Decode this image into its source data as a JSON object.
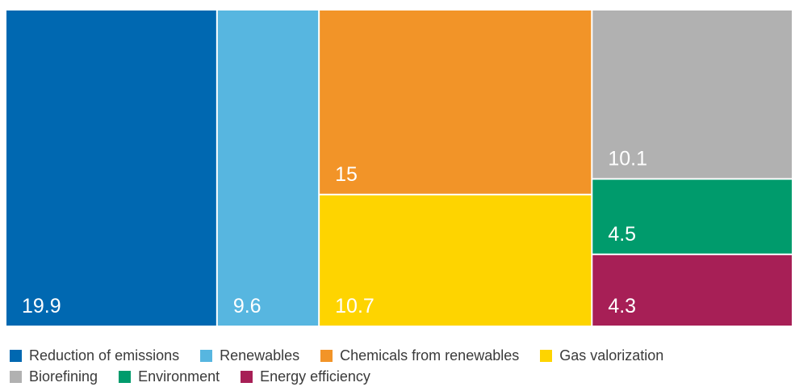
{
  "chart_data": {
    "type": "treemap",
    "title": "",
    "items": [
      {
        "name": "Reduction of emissions",
        "value": 19.9,
        "label": "19.9",
        "color": "#0068b1"
      },
      {
        "name": "Renewables",
        "value": 9.6,
        "label": "9.6",
        "color": "#57b6e0"
      },
      {
        "name": "Chemicals from renewables",
        "value": 15,
        "label": "15",
        "color": "#f29428"
      },
      {
        "name": "Gas valorization",
        "value": 10.7,
        "label": "10.7",
        "color": "#fed400"
      },
      {
        "name": "Biorefining",
        "value": 10.1,
        "label": "10.1",
        "color": "#b1b1b1"
      },
      {
        "name": "Environment",
        "value": 4.5,
        "label": "4.5",
        "color": "#009b6c"
      },
      {
        "name": "Energy efficiency",
        "value": 4.3,
        "label": "4.3",
        "color": "#a71f56"
      }
    ],
    "legend": {
      "position": "bottom",
      "rows": [
        [
          "Reduction of emissions",
          "Renewables",
          "Chemicals from renewables",
          "Gas valorization"
        ],
        [
          "Biorefining",
          "Environment",
          "Energy efficiency"
        ]
      ]
    }
  }
}
